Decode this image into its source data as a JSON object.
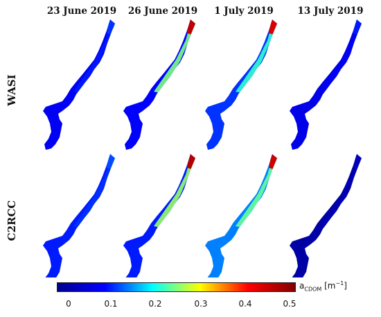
{
  "columns": [
    {
      "title": "23 June 2019"
    },
    {
      "title": "26 June 2019"
    },
    {
      "title": "1 July 2019"
    },
    {
      "title": "13 July 2019"
    }
  ],
  "rows": [
    {
      "label": "WASI"
    },
    {
      "label": "C2RCC"
    }
  ],
  "colorbar": {
    "min": 0,
    "max": 0.5,
    "ticks": [
      "0",
      "0.1",
      "0.2",
      "0.3",
      "0.4",
      "0.5"
    ],
    "unit_main": "a",
    "unit_sub": "CDOM",
    "unit_rest": " [m",
    "unit_sup": "−1",
    "unit_close": "]",
    "colormap": [
      "#00008f",
      "#0000ff",
      "#00ffff",
      "#ffff00",
      "#ff0000",
      "#800000"
    ]
  },
  "panels": [
    {
      "row": "WASI",
      "date": "23 June 2019",
      "mean": 0.09,
      "plume": 0.11,
      "tip": 0.12
    },
    {
      "row": "WASI",
      "date": "26 June 2019",
      "mean": 0.1,
      "plume": 0.25,
      "tip": 0.45
    },
    {
      "row": "WASI",
      "date": "1 July 2019",
      "mean": 0.12,
      "plume": 0.22,
      "tip": 0.43
    },
    {
      "row": "WASI",
      "date": "13 July 2019",
      "mean": 0.08,
      "plume": 0.09,
      "tip": 0.11
    },
    {
      "row": "C2RCC",
      "date": "23 June 2019",
      "mean": 0.11,
      "plume": 0.12,
      "tip": 0.13
    },
    {
      "row": "C2RCC",
      "date": "26 June 2019",
      "mean": 0.11,
      "plume": 0.26,
      "tip": 0.46
    },
    {
      "row": "C2RCC",
      "date": "1 July 2019",
      "mean": 0.15,
      "plume": 0.24,
      "tip": 0.44
    },
    {
      "row": "C2RCC",
      "date": "13 July 2019",
      "mean": 0.02,
      "plume": 0.03,
      "tip": 0.04
    }
  ]
}
